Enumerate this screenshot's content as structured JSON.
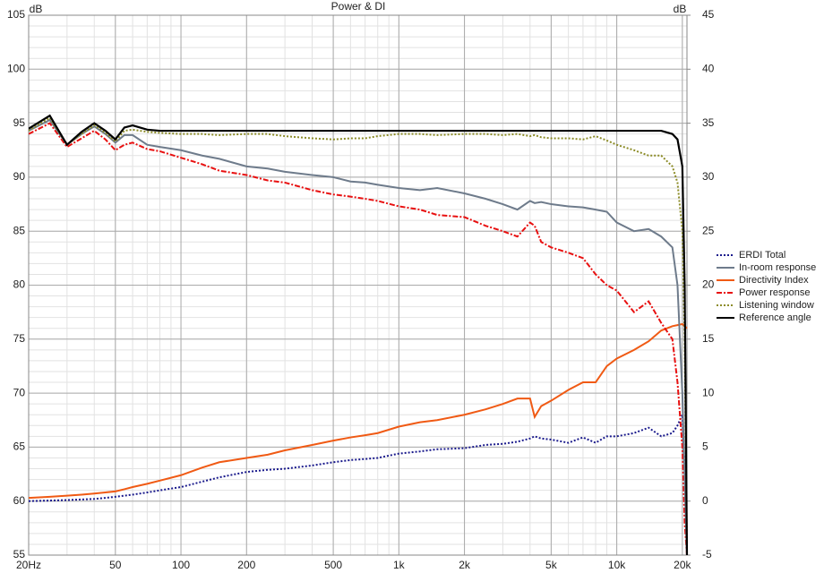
{
  "chart_data": {
    "type": "line",
    "title": "Power & DI",
    "y_label": "dB",
    "y2_label": "dB",
    "log_x": true,
    "grid": true,
    "x": [
      20,
      25,
      30,
      35,
      40,
      45,
      50,
      55,
      60,
      70,
      80,
      100,
      125,
      150,
      200,
      250,
      300,
      400,
      500,
      600,
      700,
      800,
      1000,
      1250,
      1500,
      2000,
      2500,
      3000,
      3500,
      4000,
      4200,
      4500,
      5000,
      6000,
      7000,
      8000,
      9000,
      10000,
      12000,
      14000,
      16000,
      18000,
      19000,
      20000,
      20500,
      21000
    ],
    "xlim": [
      20,
      21000
    ],
    "xticks": [
      {
        "value": 20,
        "label": "20Hz"
      },
      50,
      100,
      200,
      500,
      {
        "value": 1000,
        "label": "1k"
      },
      {
        "value": 2000,
        "label": "2k"
      },
      {
        "value": 5000,
        "label": "5k"
      },
      {
        "value": 10000,
        "label": "10k"
      },
      {
        "value": 20000,
        "label": "20k"
      }
    ],
    "ylim": [
      55,
      105
    ],
    "yticks": [
      55,
      60,
      65,
      70,
      75,
      80,
      85,
      90,
      95,
      100,
      105
    ],
    "y2lim": [
      -5,
      45
    ],
    "y2ticks": [
      -5,
      0,
      5,
      10,
      15,
      20,
      25,
      30,
      35,
      40,
      45
    ],
    "series": [
      {
        "name": "ERDI Total",
        "color": "#1a1a8c",
        "style": "dotted",
        "axis": "y2",
        "values": [
          0,
          0.05,
          0.1,
          0.15,
          0.2,
          0.3,
          0.4,
          0.5,
          0.6,
          0.8,
          1.0,
          1.3,
          1.8,
          2.2,
          2.7,
          2.9,
          3.0,
          3.3,
          3.6,
          3.8,
          3.9,
          4.0,
          4.4,
          4.6,
          4.8,
          4.9,
          5.2,
          5.3,
          5.5,
          5.8,
          6.0,
          5.8,
          5.7,
          5.4,
          5.9,
          5.4,
          6.0,
          6.0,
          6.3,
          6.8,
          6.0,
          6.3,
          7.0,
          8.0,
          3,
          -5
        ]
      },
      {
        "name": "In-room response",
        "color": "#6e7b8b",
        "style": "solid",
        "values": [
          94.3,
          95.3,
          93,
          94,
          94.7,
          94,
          93.2,
          93.9,
          93.9,
          93,
          92.8,
          92.5,
          92,
          91.7,
          91,
          90.8,
          90.5,
          90.2,
          90,
          89.6,
          89.5,
          89.3,
          89,
          88.8,
          89,
          88.5,
          88,
          87.5,
          87,
          87.8,
          87.6,
          87.7,
          87.5,
          87.3,
          87.2,
          87.0,
          86.8,
          85.8,
          85,
          85.2,
          84.5,
          83.5,
          80,
          70,
          62,
          55
        ]
      },
      {
        "name": "Directivity Index",
        "color": "#f05a14",
        "style": "solid",
        "axis": "y2",
        "values": [
          0.3,
          0.4,
          0.5,
          0.6,
          0.7,
          0.8,
          0.9,
          1.1,
          1.3,
          1.6,
          1.9,
          2.4,
          3.1,
          3.6,
          4.0,
          4.3,
          4.7,
          5.2,
          5.6,
          5.9,
          6.1,
          6.3,
          6.9,
          7.3,
          7.5,
          8.0,
          8.5,
          9.0,
          9.5,
          9.5,
          7.8,
          8.8,
          9.3,
          10.3,
          11,
          11.0,
          12.5,
          13.2,
          14,
          14.8,
          15.8,
          16.2,
          16.3,
          16.4,
          16.2,
          16.0
        ]
      },
      {
        "name": "Power response",
        "color": "#e81010",
        "style": "dashdot",
        "values": [
          94,
          95,
          92.8,
          93.6,
          94.3,
          93.5,
          92.5,
          93,
          93.2,
          92.6,
          92.4,
          91.8,
          91.2,
          90.6,
          90.2,
          89.7,
          89.5,
          88.8,
          88.4,
          88.2,
          88,
          87.8,
          87.3,
          87.0,
          86.5,
          86.3,
          85.5,
          85,
          84.5,
          85.8,
          85.5,
          84,
          83.5,
          83,
          82.5,
          81,
          80,
          79.5,
          77.5,
          78.5,
          76.5,
          75,
          71,
          65,
          58,
          55
        ]
      },
      {
        "name": "Listening window",
        "color": "#8c8c28",
        "style": "dotted",
        "values": [
          94.3,
          95.5,
          93,
          94,
          94.8,
          94.1,
          93.3,
          94.3,
          94.4,
          94.2,
          94.1,
          94,
          94,
          93.9,
          94,
          94,
          93.8,
          93.6,
          93.5,
          93.6,
          93.6,
          93.8,
          94,
          94,
          93.9,
          94,
          94,
          93.9,
          94,
          93.8,
          93.9,
          93.7,
          93.6,
          93.6,
          93.5,
          93.8,
          93.4,
          93,
          92.5,
          92,
          92,
          91,
          89.5,
          85,
          75,
          55
        ]
      },
      {
        "name": "Reference angle",
        "color": "#000000",
        "style": "solid",
        "values": [
          94.5,
          95.7,
          93,
          94.2,
          95,
          94.3,
          93.5,
          94.6,
          94.8,
          94.4,
          94.3,
          94.3,
          94.3,
          94.3,
          94.3,
          94.3,
          94.3,
          94.3,
          94.3,
          94.3,
          94.3,
          94.3,
          94.3,
          94.3,
          94.3,
          94.3,
          94.3,
          94.3,
          94.3,
          94.3,
          94.3,
          94.3,
          94.3,
          94.3,
          94.3,
          94.3,
          94.3,
          94.3,
          94.3,
          94.3,
          94.3,
          94,
          93.5,
          91,
          80,
          55
        ]
      }
    ]
  }
}
